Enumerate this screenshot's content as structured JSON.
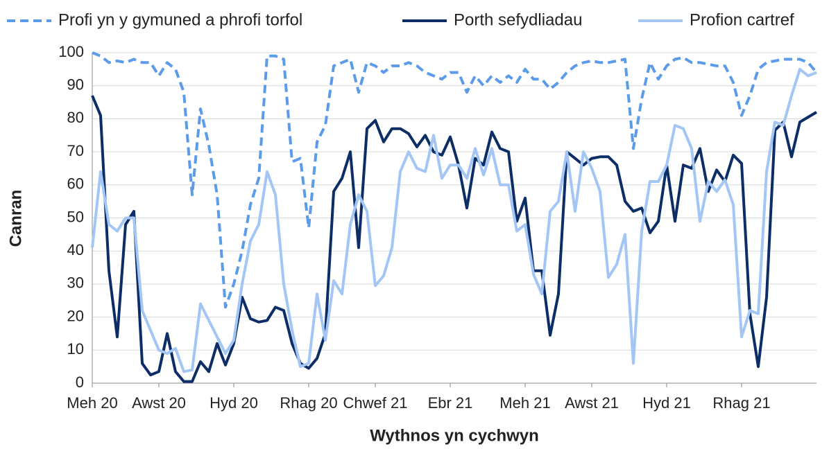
{
  "chart_data": {
    "type": "line",
    "x_label": "Wythnos yn cychwyn",
    "y_label": "Canran",
    "categories": [
      "Meh 20",
      null,
      null,
      null,
      null,
      null,
      null,
      null,
      "Awst 20",
      null,
      null,
      null,
      null,
      null,
      null,
      null,
      null,
      "Hyd 20",
      null,
      null,
      null,
      null,
      null,
      null,
      null,
      null,
      "Rhag 20",
      null,
      null,
      null,
      null,
      null,
      null,
      null,
      "Chwef 21",
      null,
      null,
      null,
      null,
      null,
      null,
      null,
      null,
      "Ebr 21",
      null,
      null,
      null,
      null,
      null,
      null,
      null,
      null,
      "Meh 21",
      null,
      null,
      null,
      null,
      null,
      null,
      null,
      "Awst 21",
      null,
      null,
      null,
      null,
      null,
      null,
      null,
      null,
      "Hyd 21",
      null,
      null,
      null,
      null,
      null,
      null,
      null,
      null,
      "Rhag 21",
      null,
      null,
      null,
      null,
      null,
      null,
      null,
      null,
      null
    ],
    "ylim": [
      0,
      100
    ],
    "yticks": [
      0,
      10,
      20,
      30,
      40,
      50,
      60,
      70,
      80,
      90,
      100
    ],
    "grid": true,
    "legend": "top",
    "series": [
      {
        "name": "Profi yn y gymuned a phrofi torfol",
        "color": "#5b9bea",
        "dashed": true,
        "values": [
          100,
          99,
          97,
          97.5,
          97,
          98,
          97,
          97,
          93,
          97,
          95,
          88,
          57,
          83,
          72,
          57,
          23,
          30,
          40,
          54,
          62,
          99,
          99,
          98,
          67,
          68,
          47,
          73,
          78,
          96,
          97,
          98,
          88,
          97,
          96,
          94,
          96,
          96,
          97,
          96,
          94,
          93,
          92,
          94,
          94,
          88,
          93,
          90,
          93,
          91,
          93,
          91,
          95,
          92,
          92,
          89,
          91,
          94,
          96,
          97,
          97.5,
          97,
          97,
          97.5,
          98,
          71,
          86,
          97,
          92,
          96,
          98,
          98.5,
          97,
          97,
          96.5,
          96,
          96,
          91,
          81,
          87,
          95,
          97,
          97.5,
          98,
          98,
          98,
          97,
          94
        ]
      },
      {
        "name": "Porth sefydliadau",
        "color": "#0c2d66",
        "dashed": false,
        "values": [
          87,
          81,
          34,
          14,
          48,
          52,
          6,
          2.5,
          3.5,
          15,
          3.5,
          0.5,
          0.5,
          6.5,
          3.5,
          12,
          5.5,
          12,
          26,
          19.5,
          18.5,
          19,
          23,
          22,
          12,
          6,
          4.5,
          7.5,
          15,
          58,
          62,
          70,
          41,
          77,
          79.5,
          73,
          77,
          77,
          75.5,
          71.5,
          75,
          70,
          69,
          74.5,
          66,
          53,
          68,
          66,
          76,
          71,
          70,
          49,
          56,
          34,
          34,
          14.5,
          27,
          70,
          68,
          66,
          68,
          68.5,
          68.5,
          66,
          55,
          52,
          53,
          45.5,
          49,
          66,
          49,
          66,
          65,
          71,
          58,
          64.5,
          61,
          69,
          66.5,
          21,
          5,
          26,
          76.5,
          79,
          68.5,
          79,
          80.5,
          82
        ]
      },
      {
        "name": "Profion cartref",
        "color": "#a3c6f5",
        "dashed": false,
        "values": [
          41,
          64,
          48,
          46,
          50,
          50,
          22,
          16,
          10,
          9,
          10.5,
          3.5,
          4,
          24,
          19,
          14,
          9,
          13,
          30,
          43,
          48,
          64,
          57,
          30,
          16,
          5,
          6,
          27,
          13,
          31,
          27,
          48,
          57,
          52,
          29.5,
          32.5,
          41,
          64,
          70,
          65,
          64,
          75,
          62,
          66,
          66,
          62,
          71,
          63,
          71,
          60,
          60,
          46,
          48,
          33,
          27,
          52,
          55,
          70,
          52,
          70,
          65,
          58,
          32,
          36,
          45,
          6,
          46,
          61,
          61,
          66,
          78,
          77,
          71,
          49,
          61,
          58,
          61.5,
          54,
          14,
          22,
          21,
          64,
          79,
          78,
          87,
          95,
          93,
          94
        ]
      }
    ]
  }
}
